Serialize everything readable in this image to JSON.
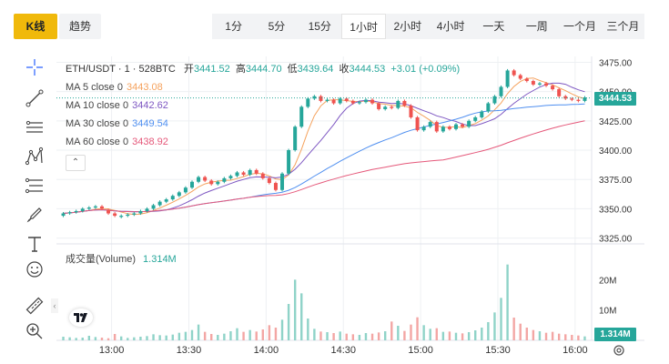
{
  "view_tabs": {
    "kline": "K线",
    "trend": "趋势"
  },
  "intervals": [
    "1分",
    "5分",
    "15分",
    "1小时",
    "2小时",
    "4小时",
    "一天",
    "一周",
    "一个月",
    "三个月"
  ],
  "active_interval": "1小时",
  "symbol": "ETH/USDT · 1 · 528BTC",
  "ohlc": {
    "open_label": "开",
    "open": "3441.52",
    "high_label": "高",
    "high": "3444.70",
    "low_label": "低",
    "low": "3439.64",
    "close_label": "收",
    "close": "3444.53",
    "change": "+3.01 (+0.09%)"
  },
  "moving_averages": [
    {
      "label": "MA 5 close 0",
      "value": "3443.08",
      "color": "#f5a25d"
    },
    {
      "label": "MA 10 close 0",
      "value": "3442.62",
      "color": "#7e57c2"
    },
    {
      "label": "MA 30 close 0",
      "value": "3449.54",
      "color": "#4f8ff0"
    },
    {
      "label": "MA 60 close 0",
      "value": "3438.92",
      "color": "#e5587a"
    }
  ],
  "volume": {
    "label": "成交量(Volume)",
    "value": "1.314M"
  },
  "current_price": "3444.53",
  "colors": {
    "up": "#26a69a",
    "down": "#ef5350",
    "accent": "#f0b90b",
    "grid": "#eef0f3"
  },
  "chart_data": {
    "type": "candlestick",
    "title": "ETH/USDT · 1 · 528BTC",
    "x_ticks": [
      "13:00",
      "13:30",
      "14:00",
      "14:30",
      "15:00",
      "15:30",
      "16:00"
    ],
    "price_ticks": [
      "3475.00",
      "3450.00",
      "3425.00",
      "3400.00",
      "3375.00",
      "3350.00",
      "3325.00"
    ],
    "price_range": [
      3320,
      3480
    ],
    "volume_ticks": [
      "20M",
      "10M"
    ],
    "volume_range": [
      0,
      27
    ],
    "series": [
      {
        "name": "Price",
        "points": [
          [
            3344,
            3346
          ],
          [
            3346,
            3347
          ],
          [
            3347,
            3348
          ],
          [
            3348,
            3350
          ],
          [
            3350,
            3351
          ],
          [
            3351,
            3352
          ],
          [
            3352,
            3350
          ],
          [
            3349,
            3346
          ],
          [
            3346,
            3344
          ],
          [
            3343,
            3344
          ],
          [
            3344,
            3345
          ],
          [
            3345,
            3346
          ],
          [
            3346,
            3348
          ],
          [
            3348,
            3350
          ],
          [
            3350,
            3353
          ],
          [
            3353,
            3356
          ],
          [
            3356,
            3358
          ],
          [
            3358,
            3361
          ],
          [
            3361,
            3364
          ],
          [
            3364,
            3368
          ],
          [
            3368,
            3373
          ],
          [
            3373,
            3377
          ],
          [
            3377,
            3374
          ],
          [
            3374,
            3371
          ],
          [
            3371,
            3373
          ],
          [
            3373,
            3376
          ],
          [
            3376,
            3378
          ],
          [
            3378,
            3381
          ],
          [
            3381,
            3379
          ],
          [
            3379,
            3383
          ],
          [
            3383,
            3380
          ],
          [
            3380,
            3376
          ],
          [
            3376,
            3372
          ],
          [
            3372,
            3366
          ],
          [
            3366,
            3380
          ],
          [
            3380,
            3400
          ],
          [
            3400,
            3420
          ],
          [
            3420,
            3437
          ],
          [
            3437,
            3444
          ],
          [
            3444,
            3446
          ],
          [
            3446,
            3442
          ],
          [
            3442,
            3443
          ],
          [
            3443,
            3440
          ],
          [
            3440,
            3444
          ],
          [
            3444,
            3442
          ],
          [
            3442,
            3440
          ],
          [
            3440,
            3441
          ],
          [
            3441,
            3443
          ],
          [
            3443,
            3440
          ],
          [
            3440,
            3435
          ],
          [
            3435,
            3437
          ],
          [
            3437,
            3436
          ],
          [
            3436,
            3442
          ],
          [
            3442,
            3438
          ],
          [
            3438,
            3428
          ],
          [
            3428,
            3417
          ],
          [
            3417,
            3420
          ],
          [
            3420,
            3424
          ],
          [
            3424,
            3416
          ],
          [
            3416,
            3420
          ],
          [
            3420,
            3418
          ],
          [
            3418,
            3422
          ],
          [
            3422,
            3420
          ],
          [
            3420,
            3425
          ],
          [
            3425,
            3428
          ],
          [
            3428,
            3433
          ],
          [
            3433,
            3440
          ],
          [
            3440,
            3446
          ],
          [
            3446,
            3454
          ],
          [
            3454,
            3468
          ],
          [
            3468,
            3464
          ],
          [
            3464,
            3461
          ],
          [
            3461,
            3459
          ],
          [
            3459,
            3456
          ],
          [
            3456,
            3457
          ],
          [
            3457,
            3455
          ],
          [
            3455,
            3452
          ],
          [
            3452,
            3446
          ],
          [
            3446,
            3444
          ],
          [
            3444,
            3443
          ],
          [
            3443,
            3442
          ],
          [
            3442,
            3445
          ]
        ]
      },
      {
        "name": "Volume",
        "values": [
          1.2,
          1.0,
          0.8,
          0.9,
          1.5,
          1.1,
          0.9,
          0.7,
          2.1,
          1.3,
          0.8,
          1.0,
          1.2,
          1.4,
          2.0,
          1.7,
          1.6,
          1.9,
          2.5,
          2.8,
          3.4,
          5.2,
          2.8,
          2.1,
          1.8,
          2.2,
          3.0,
          4.0,
          2.8,
          3.4,
          2.9,
          3.6,
          5.0,
          4.2,
          6.8,
          12.0,
          20.0,
          15.5,
          7.2,
          3.8,
          2.9,
          2.7,
          2.4,
          2.9,
          2.2,
          2.0,
          1.8,
          2.4,
          2.2,
          2.6,
          3.0,
          6.2,
          4.8,
          3.1,
          5.2,
          7.6,
          5.0,
          3.8,
          4.0,
          2.8,
          2.9,
          2.5,
          2.3,
          2.7,
          3.3,
          4.2,
          6.0,
          9.2,
          14.0,
          25.0,
          7.5,
          5.5,
          4.2,
          3.4,
          3.0,
          2.5,
          2.8,
          2.2,
          2.0,
          1.8,
          1.6,
          1.3
        ]
      }
    ]
  }
}
